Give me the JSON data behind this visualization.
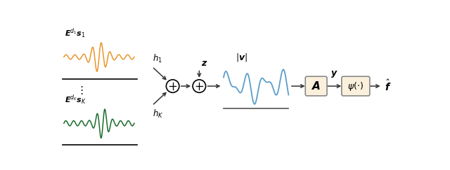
{
  "bg_color": "#ffffff",
  "orange_color": "#E8952A",
  "green_color": "#1a6b2a",
  "blue_color": "#5B9EC9",
  "box_fill": "#FAF0DC",
  "box_edge": "#888888",
  "arrow_color": "#333333",
  "figsize": [
    6.4,
    2.43
  ],
  "dpi": 100
}
